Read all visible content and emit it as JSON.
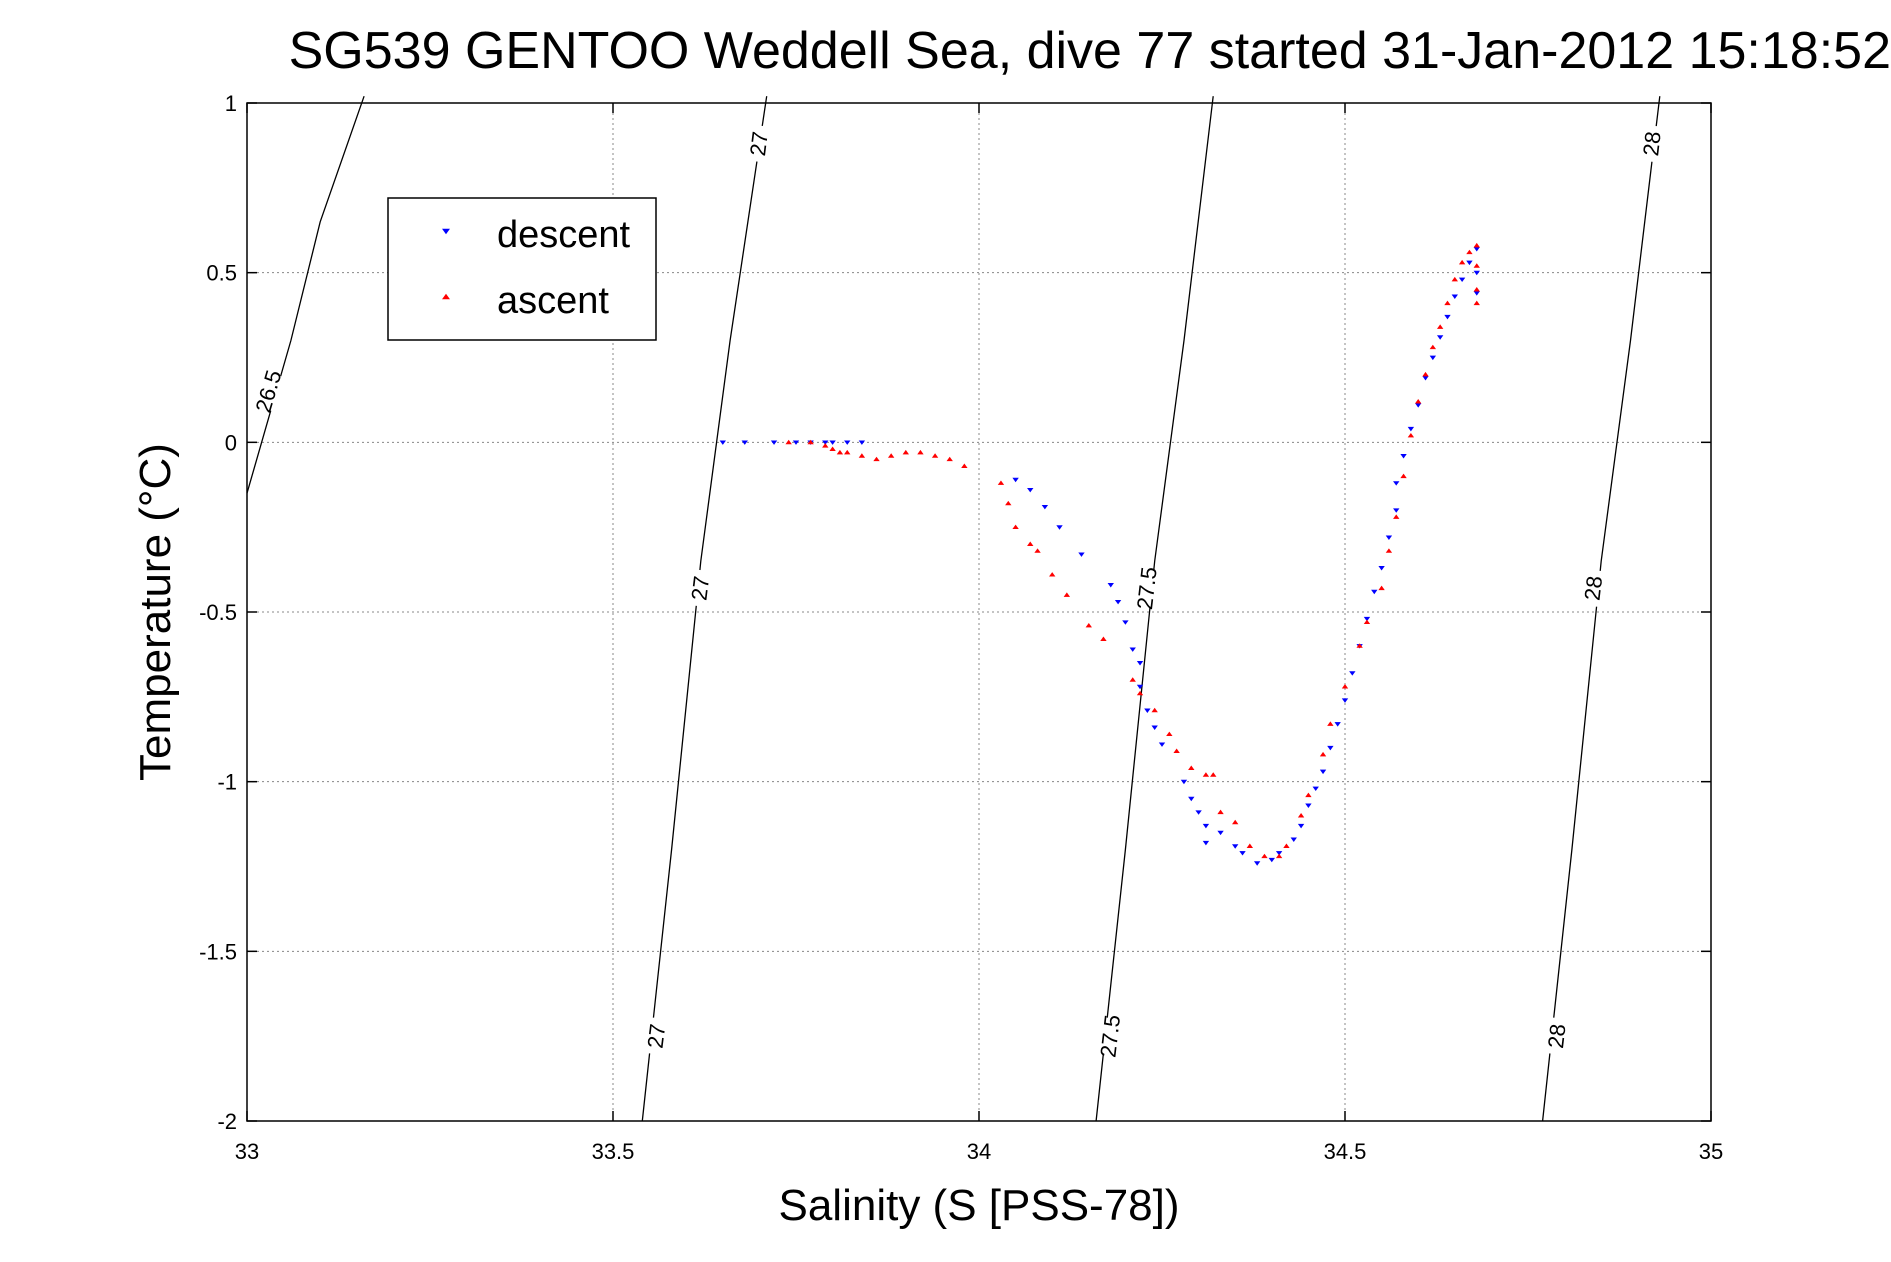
{
  "chart_data": {
    "type": "scatter",
    "title": "SG539 GENTOO Weddell Sea, dive 77 started 31-Jan-2012 15:18:52",
    "xlabel": "Salinity (S [PSS-78])",
    "ylabel": "Temperature (°C)",
    "xlim": [
      33,
      35
    ],
    "ylim": [
      -2,
      1
    ],
    "xticks": [
      33,
      33.5,
      34,
      34.5,
      35
    ],
    "yticks": [
      -2,
      -1.5,
      -1,
      -0.5,
      0,
      0.5,
      1
    ],
    "xtick_labels": [
      "33",
      "33.5",
      "34",
      "34.5",
      "35"
    ],
    "ytick_labels": [
      "-2",
      "-1.5",
      "-1",
      "-0.5",
      "0",
      "0.5",
      "1"
    ],
    "grid": true,
    "legend_position": "top-left",
    "series": [
      {
        "name": "descent",
        "marker": "triangle-down",
        "color": "#0000ff",
        "points": [
          [
            33.65,
            0.0
          ],
          [
            33.68,
            0.0
          ],
          [
            33.72,
            0.0
          ],
          [
            33.75,
            0.0
          ],
          [
            33.77,
            0.0
          ],
          [
            33.79,
            0.0
          ],
          [
            33.8,
            0.0
          ],
          [
            33.82,
            0.0
          ],
          [
            33.84,
            0.0
          ],
          [
            34.05,
            -0.11
          ],
          [
            34.07,
            -0.14
          ],
          [
            34.09,
            -0.19
          ],
          [
            34.11,
            -0.25
          ],
          [
            34.14,
            -0.33
          ],
          [
            34.18,
            -0.42
          ],
          [
            34.19,
            -0.47
          ],
          [
            34.2,
            -0.53
          ],
          [
            34.21,
            -0.61
          ],
          [
            34.22,
            -0.65
          ],
          [
            34.22,
            -0.72
          ],
          [
            34.23,
            -0.79
          ],
          [
            34.24,
            -0.84
          ],
          [
            34.25,
            -0.89
          ],
          [
            34.28,
            -1.0
          ],
          [
            34.29,
            -1.05
          ],
          [
            34.3,
            -1.09
          ],
          [
            34.31,
            -1.13
          ],
          [
            34.31,
            -1.18
          ],
          [
            34.33,
            -1.15
          ],
          [
            34.35,
            -1.19
          ],
          [
            34.36,
            -1.21
          ],
          [
            34.38,
            -1.24
          ],
          [
            34.4,
            -1.23
          ],
          [
            34.41,
            -1.21
          ],
          [
            34.43,
            -1.17
          ],
          [
            34.44,
            -1.13
          ],
          [
            34.45,
            -1.07
          ],
          [
            34.46,
            -1.02
          ],
          [
            34.47,
            -0.97
          ],
          [
            34.48,
            -0.9
          ],
          [
            34.49,
            -0.83
          ],
          [
            34.5,
            -0.76
          ],
          [
            34.51,
            -0.68
          ],
          [
            34.52,
            -0.6
          ],
          [
            34.53,
            -0.52
          ],
          [
            34.54,
            -0.44
          ],
          [
            34.55,
            -0.37
          ],
          [
            34.56,
            -0.28
          ],
          [
            34.57,
            -0.2
          ],
          [
            34.57,
            -0.12
          ],
          [
            34.58,
            -0.04
          ],
          [
            34.59,
            0.04
          ],
          [
            34.6,
            0.11
          ],
          [
            34.61,
            0.19
          ],
          [
            34.62,
            0.25
          ],
          [
            34.63,
            0.31
          ],
          [
            34.64,
            0.37
          ],
          [
            34.65,
            0.43
          ],
          [
            34.66,
            0.48
          ],
          [
            34.67,
            0.53
          ],
          [
            34.68,
            0.57
          ],
          [
            34.68,
            0.5
          ],
          [
            34.68,
            0.44
          ]
        ]
      },
      {
        "name": "ascent",
        "marker": "triangle-up",
        "color": "#ff0000",
        "points": [
          [
            33.74,
            0.0
          ],
          [
            33.77,
            0.0
          ],
          [
            33.79,
            -0.01
          ],
          [
            33.8,
            -0.02
          ],
          [
            33.81,
            -0.03
          ],
          [
            33.82,
            -0.03
          ],
          [
            33.84,
            -0.04
          ],
          [
            33.86,
            -0.05
          ],
          [
            33.88,
            -0.04
          ],
          [
            33.9,
            -0.03
          ],
          [
            33.92,
            -0.03
          ],
          [
            33.94,
            -0.04
          ],
          [
            33.96,
            -0.05
          ],
          [
            33.98,
            -0.07
          ],
          [
            34.03,
            -0.12
          ],
          [
            34.04,
            -0.18
          ],
          [
            34.05,
            -0.25
          ],
          [
            34.07,
            -0.3
          ],
          [
            34.08,
            -0.32
          ],
          [
            34.1,
            -0.39
          ],
          [
            34.12,
            -0.45
          ],
          [
            34.15,
            -0.54
          ],
          [
            34.17,
            -0.58
          ],
          [
            34.21,
            -0.7
          ],
          [
            34.22,
            -0.74
          ],
          [
            34.24,
            -0.79
          ],
          [
            34.26,
            -0.86
          ],
          [
            34.27,
            -0.91
          ],
          [
            34.29,
            -0.96
          ],
          [
            34.31,
            -0.98
          ],
          [
            34.32,
            -0.98
          ],
          [
            34.33,
            -1.09
          ],
          [
            34.35,
            -1.12
          ],
          [
            34.37,
            -1.19
          ],
          [
            34.39,
            -1.22
          ],
          [
            34.41,
            -1.22
          ],
          [
            34.42,
            -1.19
          ],
          [
            34.44,
            -1.1
          ],
          [
            34.45,
            -1.04
          ],
          [
            34.47,
            -0.92
          ],
          [
            34.48,
            -0.83
          ],
          [
            34.5,
            -0.72
          ],
          [
            34.52,
            -0.6
          ],
          [
            34.53,
            -0.53
          ],
          [
            34.55,
            -0.43
          ],
          [
            34.56,
            -0.32
          ],
          [
            34.57,
            -0.22
          ],
          [
            34.58,
            -0.1
          ],
          [
            34.59,
            0.02
          ],
          [
            34.6,
            0.12
          ],
          [
            34.61,
            0.2
          ],
          [
            34.62,
            0.28
          ],
          [
            34.63,
            0.34
          ],
          [
            34.64,
            0.41
          ],
          [
            34.65,
            0.48
          ],
          [
            34.66,
            0.53
          ],
          [
            34.67,
            0.56
          ],
          [
            34.68,
            0.58
          ],
          [
            34.68,
            0.52
          ],
          [
            34.68,
            0.45
          ],
          [
            34.68,
            0.41
          ]
        ]
      }
    ],
    "isopycnals": [
      {
        "label": "26.5",
        "points": [
          [
            33.0,
            -0.15
          ],
          [
            33.06,
            0.3
          ],
          [
            33.1,
            0.65
          ],
          [
            33.16,
            1.02
          ]
        ],
        "label_positions": [
          [
            33.03,
            0.15
          ]
        ]
      },
      {
        "label": "27",
        "points": [
          [
            33.54,
            -2.0
          ],
          [
            33.58,
            -1.2
          ],
          [
            33.62,
            -0.35
          ],
          [
            33.66,
            0.3
          ],
          [
            33.71,
            1.02
          ]
        ],
        "label_positions": [
          [
            33.56,
            -1.75
          ],
          [
            33.62,
            -0.43
          ],
          [
            33.7,
            0.88
          ]
        ]
      },
      {
        "label": "27.5",
        "points": [
          [
            34.16,
            -2.0
          ],
          [
            34.2,
            -1.2
          ],
          [
            34.24,
            -0.35
          ],
          [
            34.28,
            0.3
          ],
          [
            34.32,
            1.02
          ]
        ],
        "label_positions": [
          [
            34.18,
            -1.75
          ],
          [
            34.23,
            -0.43
          ]
        ]
      },
      {
        "label": "28",
        "points": [
          [
            34.77,
            -2.0
          ],
          [
            34.81,
            -1.2
          ],
          [
            34.85,
            -0.35
          ],
          [
            34.89,
            0.3
          ],
          [
            34.93,
            1.02
          ]
        ],
        "label_positions": [
          [
            34.79,
            -1.75
          ],
          [
            34.84,
            -0.43
          ],
          [
            34.92,
            0.88
          ]
        ]
      }
    ]
  }
}
